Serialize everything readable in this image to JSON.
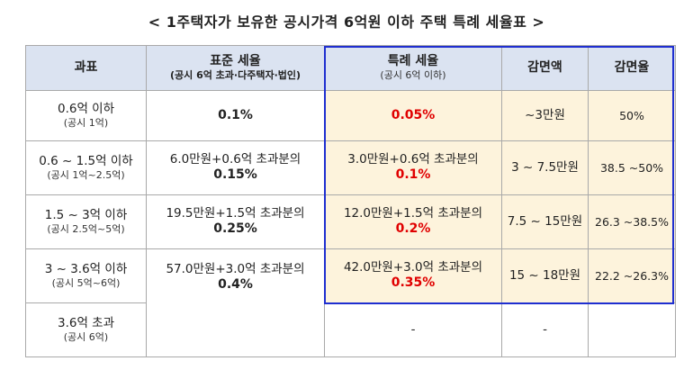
{
  "title": "< 1주택자가 보유한 공시가격 6억원 이하 주택 특례 세율표 >",
  "headers": {
    "base": "과표",
    "standard": "표준 세율",
    "standard_sub": "(공시 6억 초과·다주택자·법인)",
    "special": "특례 세율",
    "special_sub": "(공시 6억 이하)",
    "reduction_amount": "감면액",
    "reduction_rate": "감면율"
  },
  "rows": [
    {
      "base": "0.6억 이하",
      "base_sub": "(공시 1억)",
      "standard_text": "",
      "standard_rate": "0.1%",
      "special_text": "",
      "special_rate": "0.05%",
      "reduction_amount": "~3만원",
      "reduction_rate": "50%"
    },
    {
      "base": "0.6 ~ 1.5억 이하",
      "base_sub": "(공시 1억~2.5억)",
      "standard_text": "6.0만원+0.6억 초과분의",
      "standard_rate": "0.15%",
      "special_text": "3.0만원+0.6억 초과분의",
      "special_rate": "0.1%",
      "reduction_amount": "3 ~ 7.5만원",
      "reduction_rate": "38.5 ~50%"
    },
    {
      "base": "1.5 ~ 3억 이하",
      "base_sub": "(공시 2.5억~5억)",
      "standard_text": "19.5만원+1.5억 초과분의",
      "standard_rate": "0.25%",
      "special_text": "12.0만원+1.5억 초과분의",
      "special_rate": "0.2%",
      "reduction_amount": "7.5 ~ 15만원",
      "reduction_rate": "26.3 ~38.5%"
    },
    {
      "base": "3 ~ 3.6억 이하",
      "base_sub": "(공시 5억~6억)",
      "standard_text": "57.0만원+3.0억 초과분의",
      "standard_rate": "0.4%",
      "special_text": "42.0만원+3.0억 초과분의",
      "special_rate": "0.35%",
      "reduction_amount": "15 ~ 18만원",
      "reduction_rate": "22.2 ~26.3%"
    },
    {
      "base": "3.6억 초과",
      "base_sub": "(공시 6억)",
      "special_text": "-",
      "reduction_amount": "-",
      "reduction_rate": ""
    }
  ],
  "colors": {
    "header_bg": "#dbe3f1",
    "highlight_bg": "#fdf3dc",
    "highlight_border": "#1f2fd0",
    "accent_red": "#e00000"
  }
}
